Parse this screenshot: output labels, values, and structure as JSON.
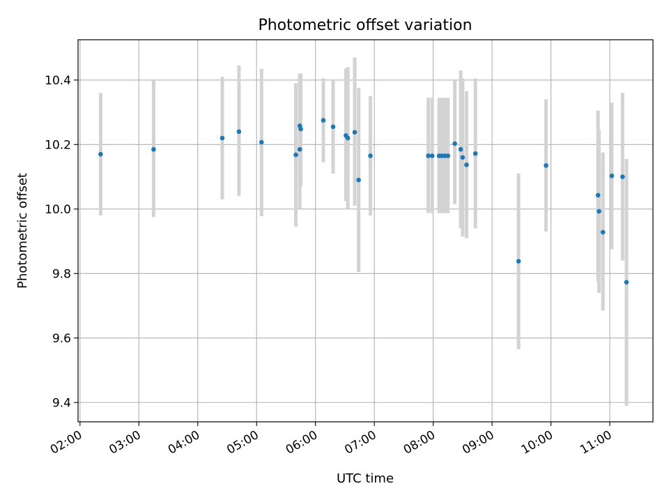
{
  "chart_data": {
    "type": "scatter",
    "title": "Photometric offset variation",
    "xlabel": "UTC time",
    "ylabel": "Photometric offset",
    "xlim": [
      "01:58",
      "11:44"
    ],
    "ylim": [
      9.34,
      10.525
    ],
    "x_ticks": [
      "02:00",
      "03:00",
      "04:00",
      "05:00",
      "06:00",
      "07:00",
      "08:00",
      "09:00",
      "10:00",
      "11:00"
    ],
    "y_ticks": [
      9.4,
      9.6,
      9.8,
      10.0,
      10.2,
      10.4
    ],
    "grid": true,
    "legend": "none",
    "colors": {
      "point": "#1f77b4",
      "errorbar": "#d3d3d3",
      "grid": "#b0b0b0"
    },
    "series": [
      {
        "points": [
          {
            "x": "02:21",
            "y": 10.17,
            "low": 9.98,
            "high": 10.36
          },
          {
            "x": "03:15",
            "y": 10.185,
            "low": 9.975,
            "high": 10.4
          },
          {
            "x": "04:25",
            "y": 10.22,
            "low": 10.03,
            "high": 10.41
          },
          {
            "x": "04:42",
            "y": 10.24,
            "low": 10.04,
            "high": 10.445
          },
          {
            "x": "05:05",
            "y": 10.207,
            "low": 9.978,
            "high": 10.435
          },
          {
            "x": "05:40",
            "y": 10.168,
            "low": 9.945,
            "high": 10.39
          },
          {
            "x": "05:44",
            "y": 10.258,
            "low": 10.1,
            "high": 10.42
          },
          {
            "x": "05:44",
            "y": 10.185,
            "low": 10.0,
            "high": 10.42
          },
          {
            "x": "05:45",
            "y": 10.248,
            "low": 10.07,
            "high": 10.42
          },
          {
            "x": "06:08",
            "y": 10.275,
            "low": 10.145,
            "high": 10.405
          },
          {
            "x": "06:18",
            "y": 10.255,
            "low": 10.11,
            "high": 10.4
          },
          {
            "x": "06:31",
            "y": 10.228,
            "low": 10.025,
            "high": 10.435
          },
          {
            "x": "06:33",
            "y": 10.22,
            "low": 10.0,
            "high": 10.44
          },
          {
            "x": "06:40",
            "y": 10.238,
            "low": 10.01,
            "high": 10.47
          },
          {
            "x": "06:44",
            "y": 10.09,
            "low": 9.805,
            "high": 10.375
          },
          {
            "x": "06:56",
            "y": 10.165,
            "low": 9.98,
            "high": 10.35
          },
          {
            "x": "07:55",
            "y": 10.165,
            "low": 9.987,
            "high": 10.345
          },
          {
            "x": "07:59",
            "y": 10.165,
            "low": 9.987,
            "high": 10.345
          },
          {
            "x": "08:06",
            "y": 10.165,
            "low": 9.987,
            "high": 10.345
          },
          {
            "x": "08:09",
            "y": 10.165,
            "low": 9.987,
            "high": 10.345
          },
          {
            "x": "08:12",
            "y": 10.165,
            "low": 9.987,
            "high": 10.345
          },
          {
            "x": "08:15",
            "y": 10.165,
            "low": 9.987,
            "high": 10.345
          },
          {
            "x": "08:22",
            "y": 10.203,
            "low": 10.015,
            "high": 10.4
          },
          {
            "x": "08:28",
            "y": 10.185,
            "low": 9.94,
            "high": 10.43
          },
          {
            "x": "08:30",
            "y": 10.16,
            "low": 9.915,
            "high": 10.405
          },
          {
            "x": "08:34",
            "y": 10.137,
            "low": 9.91,
            "high": 10.365
          },
          {
            "x": "08:43",
            "y": 10.172,
            "low": 9.94,
            "high": 10.405
          },
          {
            "x": "09:27",
            "y": 9.838,
            "low": 9.565,
            "high": 10.11
          },
          {
            "x": "09:55",
            "y": 10.135,
            "low": 9.93,
            "high": 10.34
          },
          {
            "x": "10:48",
            "y": 10.043,
            "low": 9.775,
            "high": 10.305
          },
          {
            "x": "10:49",
            "y": 9.993,
            "low": 9.74,
            "high": 10.245
          },
          {
            "x": "10:53",
            "y": 9.928,
            "low": 9.685,
            "high": 10.175
          },
          {
            "x": "11:02",
            "y": 10.103,
            "low": 9.875,
            "high": 10.33
          },
          {
            "x": "11:13",
            "y": 10.1,
            "low": 9.84,
            "high": 10.36
          },
          {
            "x": "11:17",
            "y": 9.773,
            "low": 9.39,
            "high": 10.155
          }
        ]
      }
    ]
  }
}
